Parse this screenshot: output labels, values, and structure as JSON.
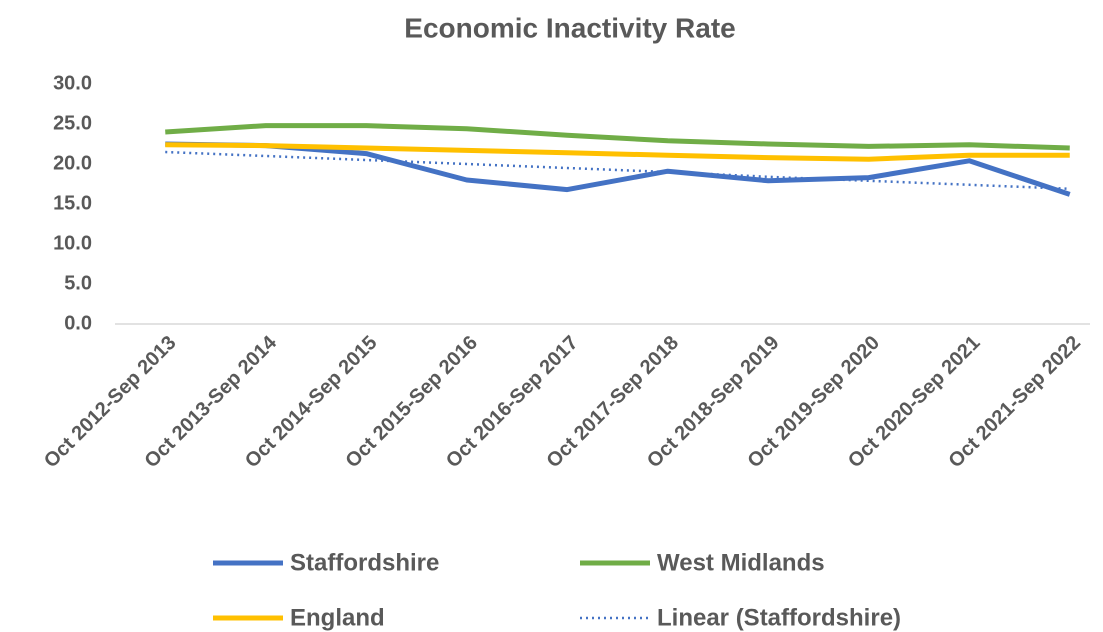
{
  "chart_data": {
    "type": "line",
    "title": "Economic Inactivity Rate",
    "categories": [
      "Oct 2012-Sep 2013",
      "Oct 2013-Sep 2014",
      "Oct 2014-Sep 2015",
      "Oct 2015-Sep 2016",
      "Oct 2016-Sep 2017",
      "Oct 2017-Sep 2018",
      "Oct 2018-Sep 2019",
      "Oct 2019-Sep 2020",
      "Oct 2020-Sep 2021",
      "Oct 2021-Sep 2022"
    ],
    "series": [
      {
        "name": "Staffordshire",
        "color": "#4472c4",
        "values": [
          22.5,
          22.3,
          21.3,
          18.0,
          16.8,
          19.1,
          17.9,
          18.3,
          20.4,
          16.2
        ]
      },
      {
        "name": "West Midlands",
        "color": "#70ad47",
        "values": [
          24.0,
          24.8,
          24.8,
          24.4,
          23.6,
          22.9,
          22.5,
          22.2,
          22.4,
          22.0
        ]
      },
      {
        "name": "England",
        "color": "#ffc000",
        "values": [
          22.4,
          22.3,
          22.0,
          21.7,
          21.4,
          21.1,
          20.8,
          20.6,
          21.1,
          21.1
        ]
      },
      {
        "name": "Linear (Staffordshire)",
        "color": "#4472c4",
        "dash": "dotted",
        "values": [
          21.5,
          21.0,
          20.5,
          20.0,
          19.5,
          19.0,
          18.4,
          17.9,
          17.4,
          16.9
        ]
      }
    ],
    "ylim": [
      0,
      30
    ],
    "yticks": [
      {
        "value": 0,
        "label": "0.0"
      },
      {
        "value": 5,
        "label": "5.0"
      },
      {
        "value": 10,
        "label": "10.0"
      },
      {
        "value": 15,
        "label": "15.0"
      },
      {
        "value": 20,
        "label": "20.0"
      },
      {
        "value": 25,
        "label": "25.0"
      },
      {
        "value": 30,
        "label": "30.0"
      }
    ],
    "grid": false,
    "legend": "bottom"
  }
}
